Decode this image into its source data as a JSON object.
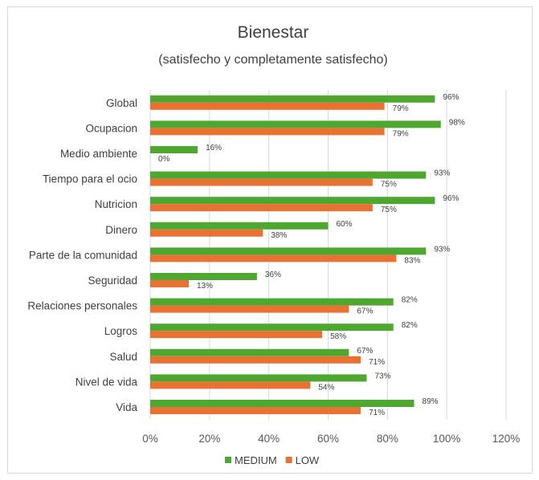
{
  "colors": {
    "medium": "#4ea72e",
    "low": "#e97132",
    "grid": "#d9d9d9",
    "text": "#404040"
  },
  "chart_data": {
    "type": "bar",
    "orientation": "horizontal",
    "title": "Bienestar",
    "subtitle": "(satisfecho y completamente satisfecho)",
    "categories": [
      "Global",
      "Ocupacion",
      "Medio ambiente",
      "Tiempo para el ocio",
      "Nutricion",
      "Dinero",
      "Parte de la comunidad",
      "Seguridad",
      "Relaciones personales",
      "Logros",
      "Salud",
      "Nivel de vida",
      "Vida"
    ],
    "series": [
      {
        "name": "MEDIUM",
        "values": [
          96,
          98,
          16,
          93,
          96,
          60,
          93,
          36,
          82,
          82,
          67,
          73,
          89
        ],
        "labels": [
          "96%",
          "98%",
          "16%",
          "93%",
          "96%",
          "60%",
          "93%",
          "36%",
          "82%",
          "82%",
          "67%",
          "73%",
          "89%"
        ]
      },
      {
        "name": "LOW",
        "values": [
          79,
          79,
          0,
          75,
          75,
          38,
          83,
          13,
          67,
          58,
          71,
          54,
          71
        ],
        "labels": [
          "79%",
          "79%",
          "0%",
          "75%",
          "75%",
          "38%",
          "83%",
          "13%",
          "67%",
          "58%",
          "71%",
          "54%",
          "71%"
        ]
      }
    ],
    "xlim": [
      0,
      120
    ],
    "xticks": [
      "0%",
      "20%",
      "40%",
      "60%",
      "80%",
      "100%",
      "120%"
    ],
    "xtick_values": [
      0,
      20,
      40,
      60,
      80,
      100,
      120
    ],
    "grid": true,
    "legend_position": "bottom"
  }
}
